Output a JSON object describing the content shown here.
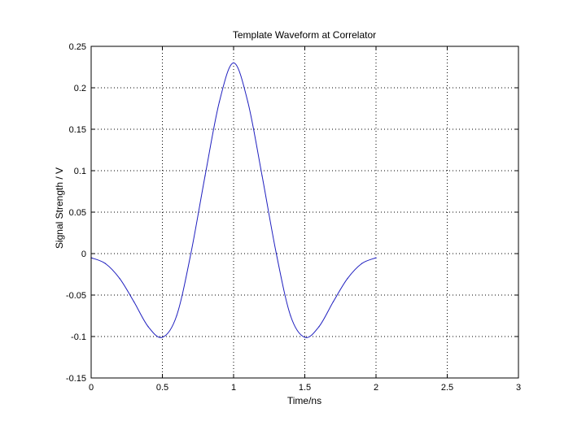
{
  "chart_data": {
    "type": "line",
    "title": "Template Waveform at Correlator",
    "xlabel": "Time/ns",
    "ylabel": "Signal Strength / V",
    "xlim": [
      0,
      3
    ],
    "ylim": [
      -0.15,
      0.25
    ],
    "x_ticks": [
      "0",
      "0.5",
      "1",
      "1.5",
      "2",
      "2.5",
      "3"
    ],
    "y_ticks": [
      "-0.15",
      "-0.1",
      "-0.05",
      "0",
      "0.05",
      "0.1",
      "0.15",
      "0.2",
      "0.25"
    ],
    "grid": true,
    "series": [
      {
        "color": "#1f1fbf",
        "x": [
          0,
          0.1,
          0.2,
          0.3,
          0.4,
          0.5,
          0.6,
          0.7,
          0.8,
          0.9,
          1.0,
          1.1,
          1.2,
          1.3,
          1.4,
          1.5,
          1.6,
          1.7,
          1.8,
          1.9,
          2.0
        ],
        "y": [
          -0.005,
          -0.012,
          -0.03,
          -0.058,
          -0.088,
          -0.101,
          -0.075,
          0.0,
          0.094,
          0.183,
          0.23,
          0.183,
          0.094,
          0.0,
          -0.075,
          -0.101,
          -0.088,
          -0.058,
          -0.03,
          -0.012,
          -0.005
        ]
      }
    ]
  }
}
